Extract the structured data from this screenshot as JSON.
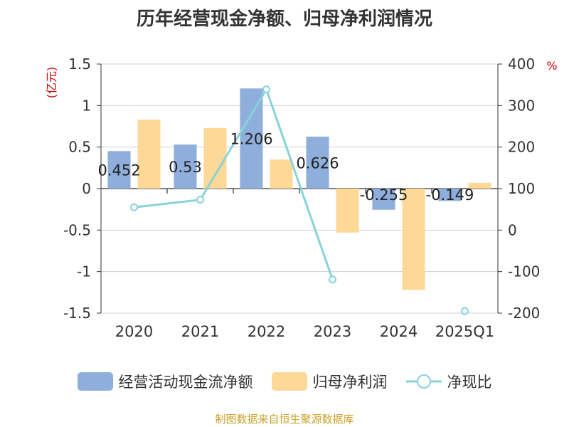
{
  "title": "历年经营现金净额、归母净利润情况",
  "source": "制图数据来自恒生聚源数据库",
  "chart_data": {
    "type": "bar",
    "title": "历年经营现金净额、归母净利润情况",
    "categories": [
      "2020",
      "2021",
      "2022",
      "2023",
      "2024",
      "2025Q1"
    ],
    "y_left": {
      "unit": "(亿元)",
      "range": [
        -1.5,
        1.5
      ],
      "ticks": [
        1.5,
        1,
        0.5,
        0,
        -0.5,
        -1,
        -1.5
      ],
      "tick_labels": [
        "1.5",
        "1",
        "0.5",
        "0",
        "-0.5",
        "-1",
        "-1.5"
      ]
    },
    "y_right": {
      "unit": "%",
      "range": [
        -200,
        400
      ],
      "ticks": [
        400,
        300,
        200,
        100,
        0,
        -100,
        -200
      ],
      "tick_labels": [
        "400",
        "300",
        "200",
        "100",
        "0",
        "-100",
        "-200"
      ]
    },
    "grid": true,
    "legend_position": "bottom",
    "series": [
      {
        "name": "经营活动现金流净额",
        "kind": "bar",
        "axis": "left",
        "color": "#8eaedb",
        "values": [
          0.452,
          0.53,
          1.206,
          0.626,
          -0.255,
          -0.149
        ],
        "labels": [
          "0.452",
          "0.53",
          "1.206",
          "0.626",
          "-0.255",
          "-0.149"
        ]
      },
      {
        "name": "归母净利润",
        "kind": "bar",
        "axis": "left",
        "color": "#fed896",
        "values": [
          0.83,
          0.73,
          0.35,
          -0.53,
          -1.22,
          0.07
        ]
      },
      {
        "name": "净现比",
        "kind": "line",
        "axis": "right",
        "color": "#88d3d8",
        "values": [
          55,
          73,
          339,
          -119,
          null,
          -195
        ]
      }
    ]
  }
}
